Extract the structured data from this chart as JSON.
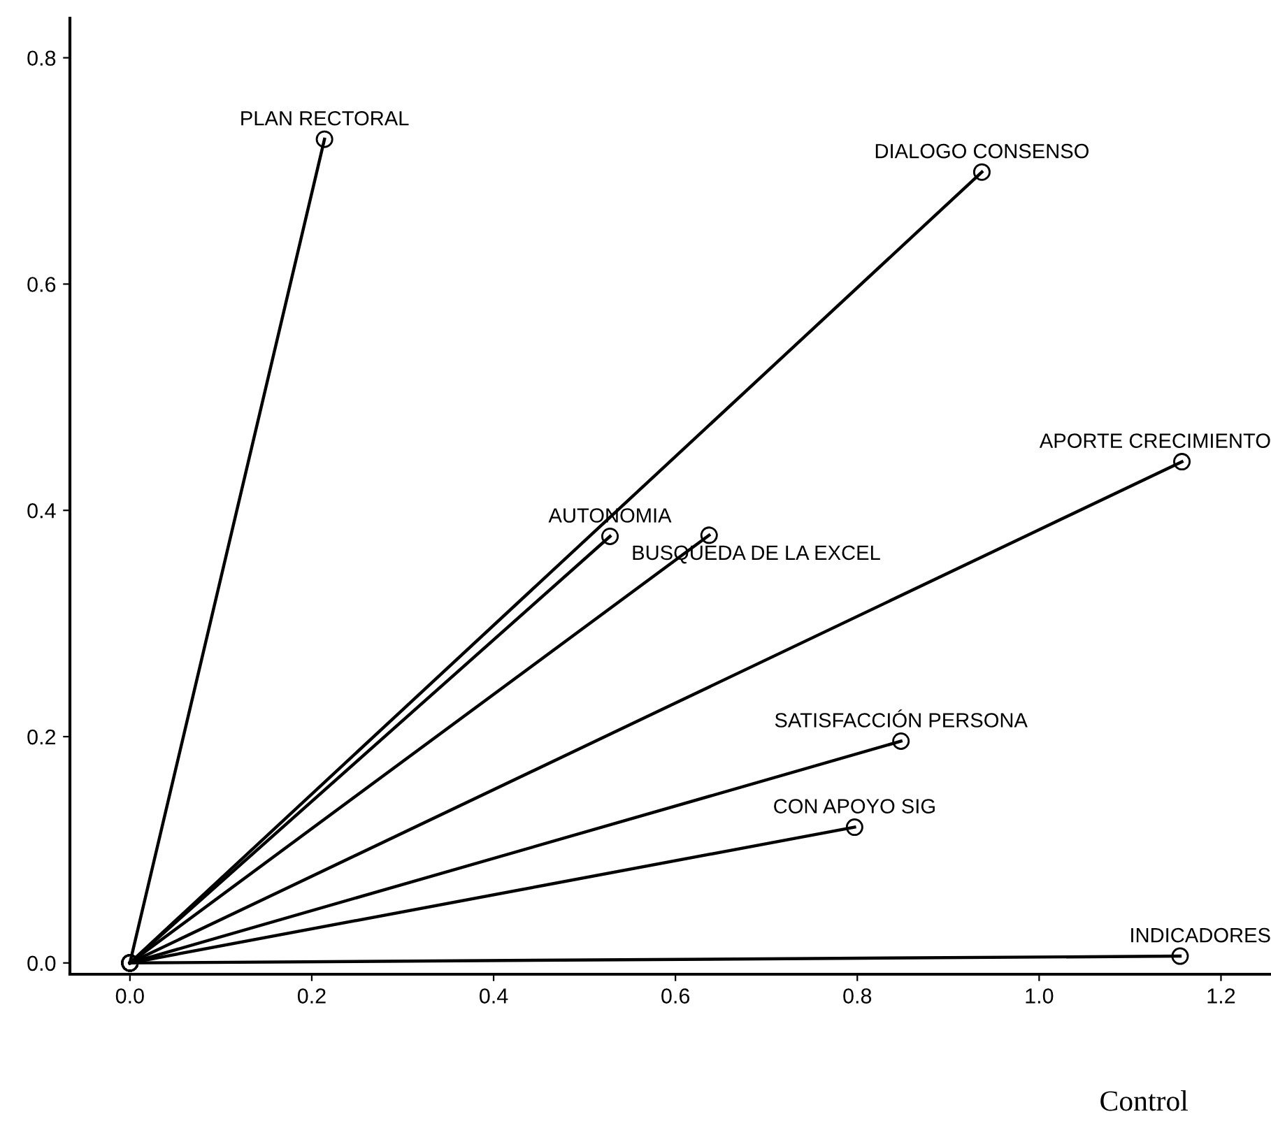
{
  "chart_data": {
    "type": "line",
    "marker": "circle",
    "line_style": "solid",
    "legend": false,
    "grid": false,
    "xlim": [
      -0.066,
      1.255
    ],
    "ylim": [
      -0.01,
      0.835
    ],
    "xticks": [
      {
        "value": 0,
        "label": "0.0"
      },
      {
        "value": 0.2,
        "label": "0.2"
      },
      {
        "value": 0.4,
        "label": "0.4"
      },
      {
        "value": 0.6,
        "label": "0.6"
      },
      {
        "value": 0.8,
        "label": "0.8"
      },
      {
        "value": 1.0,
        "label": "1.0"
      },
      {
        "value": 1.2,
        "label": "1.2"
      }
    ],
    "yticks": [
      {
        "value": 0,
        "label": "0.0"
      },
      {
        "value": 0.2,
        "label": "0.2"
      },
      {
        "value": 0.4,
        "label": "0.4"
      },
      {
        "value": 0.6,
        "label": "0.6"
      },
      {
        "value": 0.8,
        "label": "0.8"
      }
    ],
    "series": [
      {
        "name": "PLAN RECTORAL",
        "color": "#000000",
        "x": [
          0,
          0.214
        ],
        "values": [
          0,
          0.728
        ]
      },
      {
        "name": "DIALOGO CONSENSO",
        "color": "#000000",
        "x": [
          0,
          0.937
        ],
        "values": [
          0,
          0.699
        ]
      },
      {
        "name": "APORTE CRECIMIENTO",
        "color": "#000000",
        "x": [
          0,
          1.157
        ],
        "values": [
          0,
          0.443
        ]
      },
      {
        "name": "AUTONOMIA",
        "color": "#000000",
        "x": [
          0,
          0.528
        ],
        "values": [
          0,
          0.377
        ]
      },
      {
        "name": "BUSQUEDA DE LA EXCEL",
        "color": "#000000",
        "x": [
          0,
          0.637
        ],
        "values": [
          0,
          0.378
        ]
      },
      {
        "name": "SATISFACCIÓN PERSONA",
        "color": "#000000",
        "x": [
          0,
          0.848
        ],
        "values": [
          0,
          0.196
        ]
      },
      {
        "name": "CON APOYO SIG",
        "color": "#000000",
        "x": [
          0,
          0.797
        ],
        "values": [
          0,
          0.12
        ]
      },
      {
        "name": "INDICADORES",
        "color": "#000000",
        "x": [
          0,
          1.155
        ],
        "values": [
          0,
          0.006
        ]
      }
    ],
    "annotations": [
      "Control"
    ]
  }
}
